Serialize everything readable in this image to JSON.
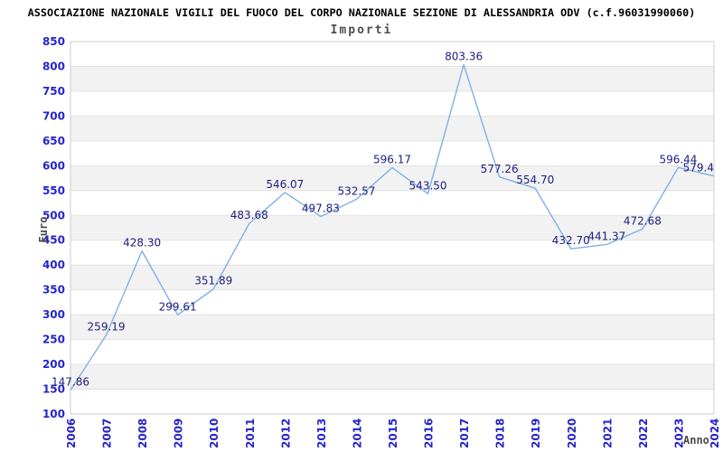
{
  "header": {
    "title": "ASSOCIAZIONE NAZIONALE VIGILI DEL FUOCO DEL CORPO NAZIONALE SEZIONE DI ALESSANDRIA ODV (c.f.96031990060)",
    "subtitle": "Importi"
  },
  "chart_data": {
    "type": "line",
    "title": "Importi",
    "xlabel": "Anno",
    "ylabel": "Euro",
    "categories": [
      "2006",
      "2007",
      "2008",
      "2009",
      "2010",
      "2011",
      "2012",
      "2013",
      "2014",
      "2015",
      "2016",
      "2017",
      "2018",
      "2019",
      "2020",
      "2021",
      "2022",
      "2023",
      "2024"
    ],
    "values": [
      147.86,
      259.19,
      428.3,
      299.61,
      351.89,
      483.68,
      546.07,
      497.83,
      532.57,
      596.17,
      543.5,
      803.36,
      577.26,
      554.7,
      432.7,
      441.37,
      472.68,
      596.44,
      579.4
    ],
    "point_labels": [
      "147.86",
      "259.19",
      "428.30",
      "299.61",
      "351.89",
      "483.68",
      "546.07",
      "497.83",
      "532.57",
      "596.17",
      "543.50",
      "803.36",
      "577.26",
      "554.70",
      "432.70",
      "441.37",
      "472.68",
      "596.44",
      "579.4"
    ],
    "ylim": [
      100,
      850
    ],
    "ytick_step": 50,
    "grid": "horizontal",
    "background_bands": "alternating-gray",
    "legend": "none",
    "colors": {
      "line": "#7db1e8",
      "band": "#f2f2f2",
      "gridline": "#e2e2e2",
      "plot_border": "#cccccc",
      "tick_label": "#2424cc",
      "point_label": "#202080",
      "title": "#000000",
      "subtitle": "#4d4d4d",
      "axis_title": "#4a4a4a"
    }
  }
}
